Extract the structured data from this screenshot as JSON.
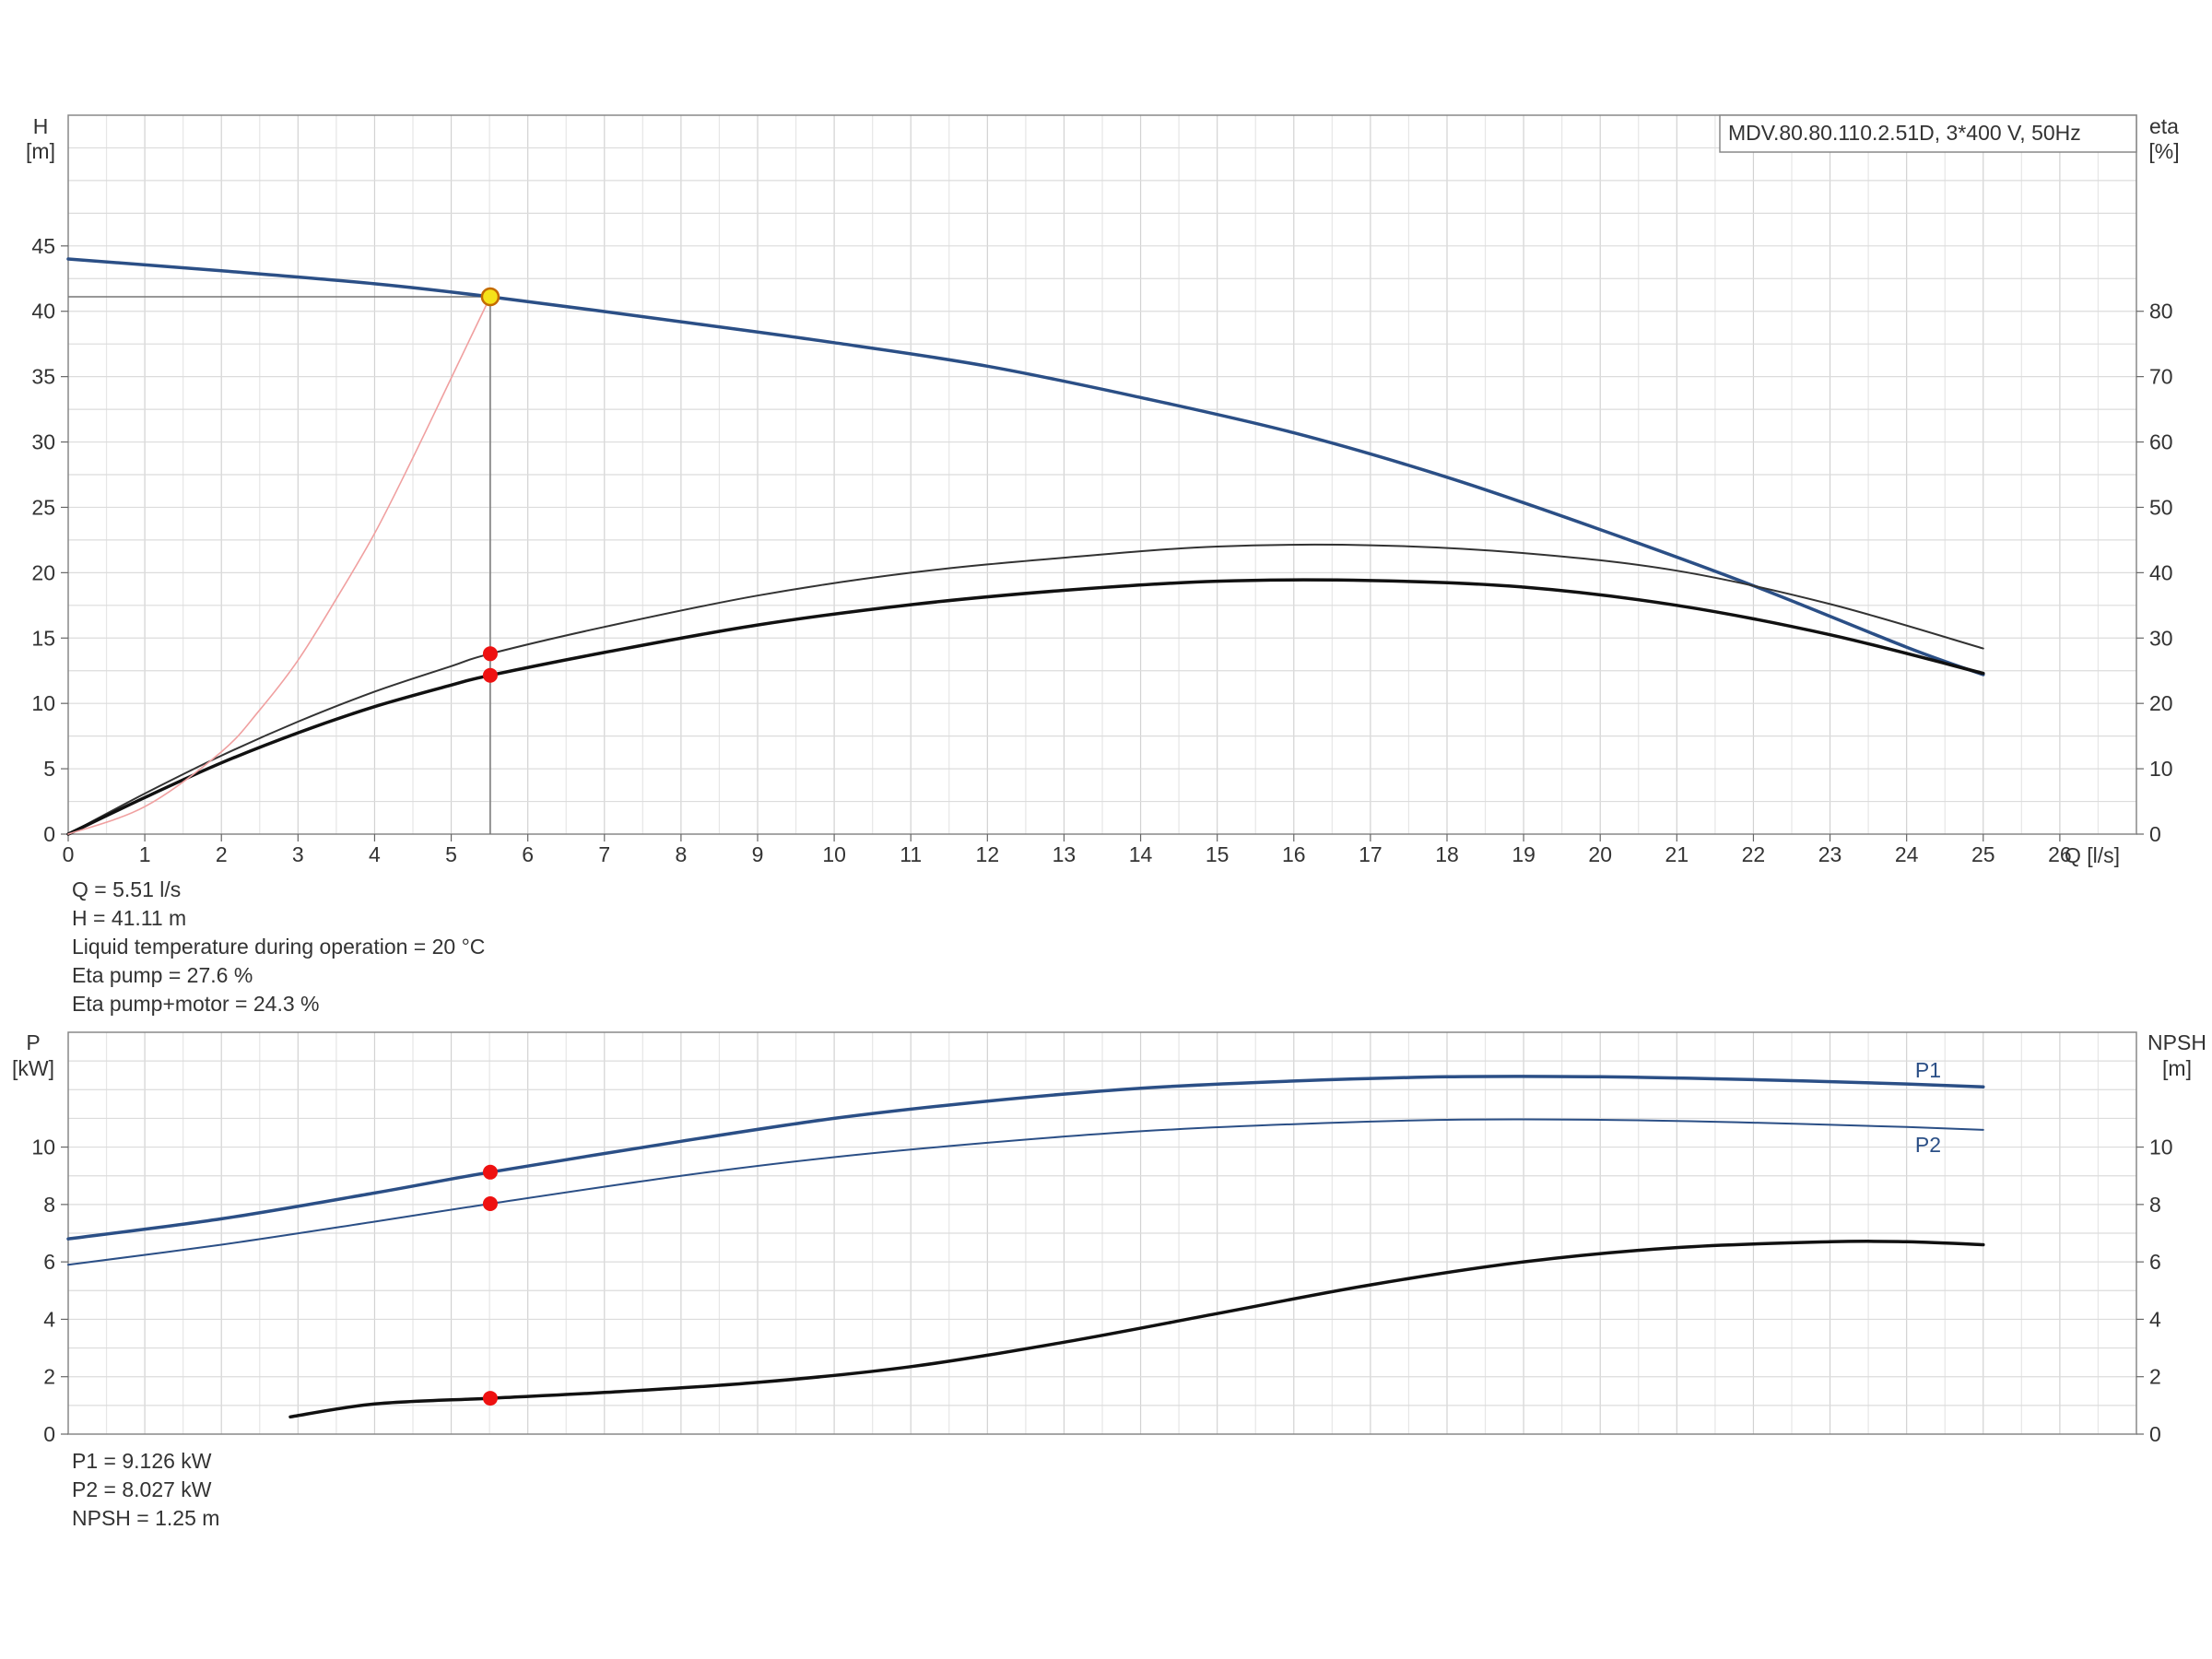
{
  "chart_data": [
    {
      "type": "line",
      "title": "MDV.80.80.110.2.51D, 3*400 V, 50Hz",
      "xlabel": "Q [l/s]",
      "ylabel_left": [
        "H",
        "[m]"
      ],
      "ylabel_right": [
        "eta",
        "[%]"
      ],
      "xlim": [
        0,
        27
      ],
      "x_ticks": [
        0,
        1,
        2,
        3,
        4,
        5,
        6,
        7,
        8,
        9,
        10,
        11,
        12,
        13,
        14,
        15,
        16,
        17,
        18,
        19,
        20,
        21,
        22,
        23,
        24,
        25,
        26
      ],
      "ylim_left": [
        0,
        55
      ],
      "y_ticks_left": [
        0,
        5,
        10,
        15,
        20,
        25,
        30,
        35,
        40,
        45
      ],
      "ylim_right": [
        0,
        110
      ],
      "y_ticks_right": [
        0,
        10,
        20,
        30,
        40,
        50,
        60,
        70,
        80
      ],
      "grid": true,
      "series": [
        {
          "key": "head",
          "axis": "left",
          "color": "#2b4f86",
          "width": 3.5,
          "x": [
            0,
            2,
            4,
            5.51,
            8,
            10,
            12,
            14,
            16,
            18,
            20,
            22,
            24,
            25
          ],
          "y": [
            44.0,
            43.1,
            42.1,
            41.11,
            39.2,
            37.6,
            35.8,
            33.4,
            30.7,
            27.3,
            23.3,
            19.0,
            14.3,
            12.2
          ]
        },
        {
          "key": "eta_pump",
          "axis": "right",
          "color": "#333333",
          "width": 2,
          "x": [
            0,
            1,
            2,
            3,
            4,
            5,
            5.51,
            7,
            9,
            11,
            13,
            15,
            17,
            19,
            21,
            23,
            25
          ],
          "y": [
            0,
            6.2,
            12.0,
            17.2,
            21.8,
            25.7,
            27.6,
            31.7,
            36.5,
            40.0,
            42.3,
            44.0,
            44.2,
            43.0,
            40.3,
            35.2,
            28.4
          ]
        },
        {
          "key": "eta_pump_motor",
          "axis": "right",
          "color": "#111111",
          "width": 3.5,
          "x": [
            0,
            1,
            2,
            3,
            4,
            5,
            5.51,
            7,
            9,
            11,
            13,
            15,
            17,
            19,
            21,
            23,
            25
          ],
          "y": [
            0,
            5.6,
            10.9,
            15.5,
            19.5,
            22.8,
            24.3,
            27.8,
            32.0,
            35.1,
            37.3,
            38.7,
            38.8,
            37.8,
            35.0,
            30.5,
            24.6
          ]
        },
        {
          "key": "system",
          "axis": "left",
          "color": "#f0a0a0",
          "width": 1.6,
          "x": [
            0,
            1,
            2,
            2.5,
            3,
            3.5,
            4,
            4.5,
            5,
            5.51
          ],
          "y": [
            0,
            2.1,
            6.3,
            9.5,
            13.3,
            18.0,
            23.0,
            28.8,
            34.9,
            41.11
          ]
        }
      ],
      "duty_point": {
        "x": 5.51,
        "y": 41.11
      },
      "markers": [
        {
          "x": 5.51,
          "y": 27.6,
          "axis": "right"
        },
        {
          "x": 5.51,
          "y": 24.3,
          "axis": "right"
        }
      ],
      "readout": [
        "Q = 5.51 l/s",
        "H = 41.11 m",
        "Liquid temperature during operation = 20 °C",
        "Eta pump = 27.6 %",
        "Eta pump+motor = 24.3 %"
      ]
    },
    {
      "type": "line",
      "xlim": [
        0,
        27
      ],
      "ylabel_left": [
        "P",
        "[kW]"
      ],
      "ylabel_right": [
        "NPSH",
        "[m]"
      ],
      "ylim_left": [
        0,
        14
      ],
      "y_ticks_left": [
        0,
        2,
        4,
        6,
        8,
        10
      ],
      "ylim_right": [
        0,
        14
      ],
      "y_ticks_right": [
        0,
        2,
        4,
        6,
        8,
        10
      ],
      "grid": true,
      "series": [
        {
          "key": "p1",
          "name": "P1",
          "axis": "left",
          "color": "#2b4f86",
          "width": 3.5,
          "x": [
            0,
            2,
            4,
            5.51,
            8,
            10,
            12,
            14,
            16,
            18,
            20,
            22,
            24,
            25
          ],
          "y": [
            6.8,
            7.5,
            8.4,
            9.126,
            10.2,
            11.0,
            11.6,
            12.05,
            12.3,
            12.45,
            12.45,
            12.35,
            12.2,
            12.1
          ]
        },
        {
          "key": "p2",
          "name": "P2",
          "axis": "left",
          "color": "#2b4f86",
          "width": 2,
          "x": [
            0,
            2,
            4,
            5.51,
            8,
            10,
            12,
            14,
            16,
            18,
            20,
            22,
            24,
            25
          ],
          "y": [
            5.9,
            6.6,
            7.4,
            8.027,
            9.0,
            9.65,
            10.15,
            10.55,
            10.8,
            10.95,
            10.95,
            10.85,
            10.7,
            10.6
          ]
        },
        {
          "key": "npsh",
          "axis": "right",
          "color": "#111111",
          "width": 3.5,
          "x": [
            2.9,
            4,
            5.51,
            7,
            9,
            11,
            13,
            15,
            17,
            19,
            21,
            23,
            24,
            25
          ],
          "y": [
            0.6,
            1.05,
            1.25,
            1.45,
            1.8,
            2.35,
            3.2,
            4.2,
            5.2,
            6.0,
            6.5,
            6.7,
            6.7,
            6.6
          ]
        }
      ],
      "markers": [
        {
          "x": 5.51,
          "y": 9.126,
          "axis": "left"
        },
        {
          "x": 5.51,
          "y": 8.027,
          "axis": "left"
        },
        {
          "x": 5.51,
          "y": 1.25,
          "axis": "right"
        }
      ],
      "readout": [
        "P1 = 9.126 kW",
        "P2 = 8.027 kW",
        "NPSH = 1.25 m"
      ]
    }
  ]
}
